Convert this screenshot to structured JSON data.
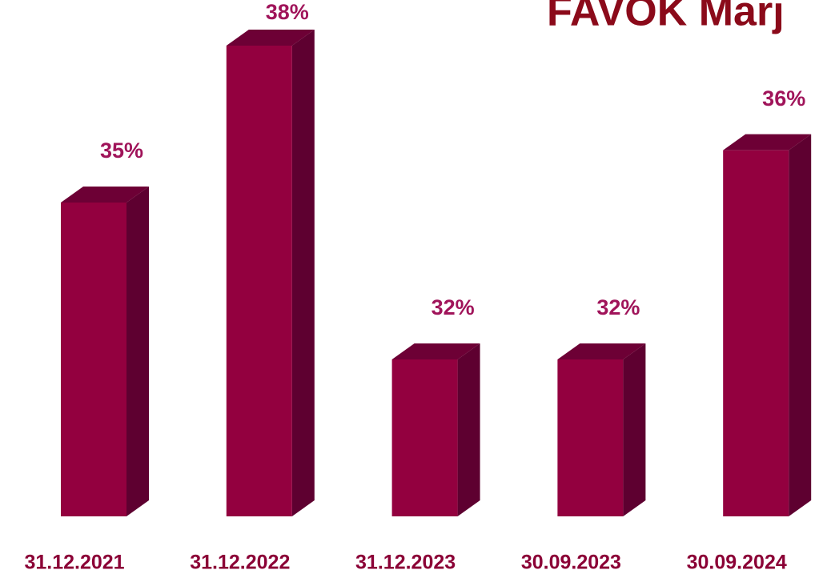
{
  "chart_data": {
    "type": "bar3d",
    "title": "FAVÖK Marj",
    "categories": [
      "31.12.2021",
      "31.12.2022",
      "31.12.2023",
      "30.09.2023",
      "30.09.2024"
    ],
    "values": [
      35,
      38,
      32,
      32,
      36
    ],
    "value_labels": [
      "35%",
      "38%",
      "32%",
      "32%",
      "36%"
    ],
    "color": "#93003f",
    "ylim": [
      29,
      38
    ]
  }
}
